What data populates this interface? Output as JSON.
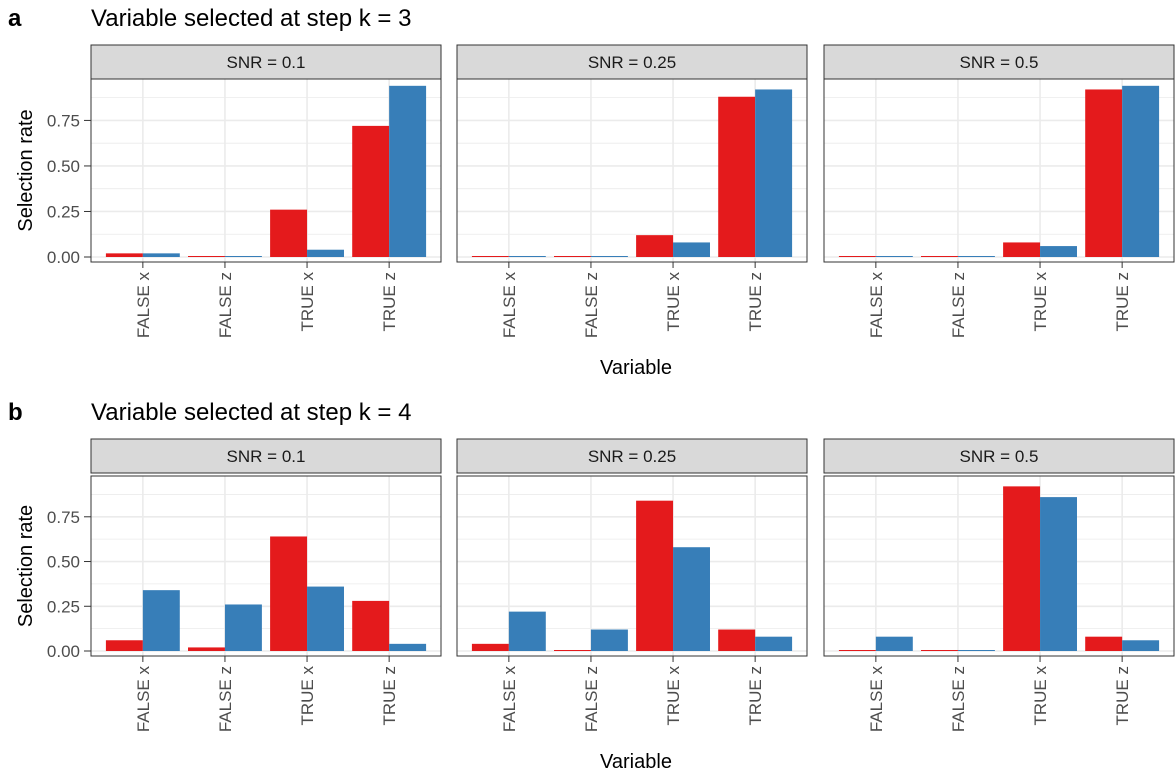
{
  "colors": {
    "series_a": "#e41a1c",
    "series_b": "#377eb8",
    "strip_fill": "#d9d9d9",
    "grid": "#ebebeb",
    "axis_text": "#4d4d4d"
  },
  "chart_data": [
    {
      "type": "bar",
      "panel_letter": "a",
      "title": "Variable selected at step k = 3",
      "xlabel": "Variable",
      "ylabel": "Selection rate",
      "ylim": [
        0,
        0.95
      ],
      "yticks": [
        "0.00",
        "0.25",
        "0.50",
        "0.75"
      ],
      "grid": true,
      "categories": [
        "FALSE x",
        "FALSE z",
        "TRUE x",
        "TRUE z"
      ],
      "facets": [
        {
          "label": "SNR = 0.1",
          "series": [
            {
              "values": [
                0.02,
                0.0,
                0.26,
                0.72
              ]
            },
            {
              "values": [
                0.02,
                0.0,
                0.04,
                0.94
              ]
            }
          ]
        },
        {
          "label": "SNR = 0.25",
          "series": [
            {
              "values": [
                0.0,
                0.0,
                0.12,
                0.88
              ]
            },
            {
              "values": [
                0.0,
                0.0,
                0.08,
                0.92
              ]
            }
          ]
        },
        {
          "label": "SNR = 0.5",
          "series": [
            {
              "values": [
                0.0,
                0.0,
                0.08,
                0.92
              ]
            },
            {
              "values": [
                0.0,
                0.0,
                0.06,
                0.94
              ]
            }
          ]
        }
      ]
    },
    {
      "type": "bar",
      "panel_letter": "b",
      "title": "Variable selected at step k = 4",
      "xlabel": "Variable",
      "ylabel": "Selection rate",
      "ylim": [
        0,
        0.95
      ],
      "yticks": [
        "0.00",
        "0.25",
        "0.50",
        "0.75"
      ],
      "grid": true,
      "categories": [
        "FALSE x",
        "FALSE z",
        "TRUE x",
        "TRUE z"
      ],
      "facets": [
        {
          "label": "SNR = 0.1",
          "series": [
            {
              "values": [
                0.06,
                0.02,
                0.64,
                0.28
              ]
            },
            {
              "values": [
                0.34,
                0.26,
                0.36,
                0.04
              ]
            }
          ]
        },
        {
          "label": "SNR = 0.25",
          "series": [
            {
              "values": [
                0.04,
                0.0,
                0.84,
                0.12
              ]
            },
            {
              "values": [
                0.22,
                0.12,
                0.58,
                0.08
              ]
            }
          ]
        },
        {
          "label": "SNR = 0.5",
          "series": [
            {
              "values": [
                0.0,
                0.0,
                0.92,
                0.08
              ]
            },
            {
              "values": [
                0.08,
                0.0,
                0.86,
                0.06
              ]
            }
          ]
        }
      ]
    }
  ]
}
